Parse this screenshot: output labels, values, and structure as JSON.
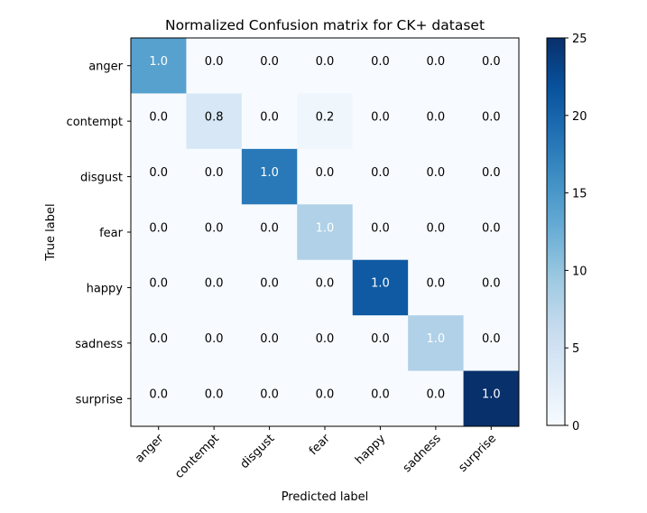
{
  "chart_data": {
    "type": "heatmap",
    "title": "Normalized Confusion matrix for CK+ dataset",
    "xlabel": "Predicted label",
    "ylabel": "True label",
    "x_categories": [
      "anger",
      "contempt",
      "disgust",
      "fear",
      "happy",
      "sadness",
      "surprise"
    ],
    "y_categories": [
      "anger",
      "contempt",
      "disgust",
      "fear",
      "happy",
      "sadness",
      "surprise"
    ],
    "counts": [
      [
        14,
        0,
        0,
        0,
        0,
        0,
        0
      ],
      [
        0,
        4,
        0,
        1,
        0,
        0,
        0
      ],
      [
        0,
        0,
        18,
        0,
        0,
        0,
        0
      ],
      [
        0,
        0,
        0,
        8,
        0,
        0,
        0
      ],
      [
        0,
        0,
        0,
        0,
        21,
        0,
        0
      ],
      [
        0,
        0,
        0,
        0,
        0,
        8,
        0
      ],
      [
        0,
        0,
        0,
        0,
        0,
        0,
        25
      ]
    ],
    "labels": [
      [
        "1.0",
        "0.0",
        "0.0",
        "0.0",
        "0.0",
        "0.0",
        "0.0"
      ],
      [
        "0.0",
        "0.8",
        "0.0",
        "0.2",
        "0.0",
        "0.0",
        "0.0"
      ],
      [
        "0.0",
        "0.0",
        "1.0",
        "0.0",
        "0.0",
        "0.0",
        "0.0"
      ],
      [
        "0.0",
        "0.0",
        "0.0",
        "1.0",
        "0.0",
        "0.0",
        "0.0"
      ],
      [
        "0.0",
        "0.0",
        "0.0",
        "0.0",
        "1.0",
        "0.0",
        "0.0"
      ],
      [
        "0.0",
        "0.0",
        "0.0",
        "0.0",
        "0.0",
        "1.0",
        "0.0"
      ],
      [
        "0.0",
        "0.0",
        "0.0",
        "0.0",
        "0.0",
        "0.0",
        "1.0"
      ]
    ],
    "colormap": "Blues",
    "colorbar": {
      "range": [
        0,
        25
      ],
      "ticks": [
        "0",
        "5",
        "10",
        "15",
        "20",
        "25"
      ]
    },
    "grid": false,
    "x_tick_rotation": "45-degree"
  }
}
